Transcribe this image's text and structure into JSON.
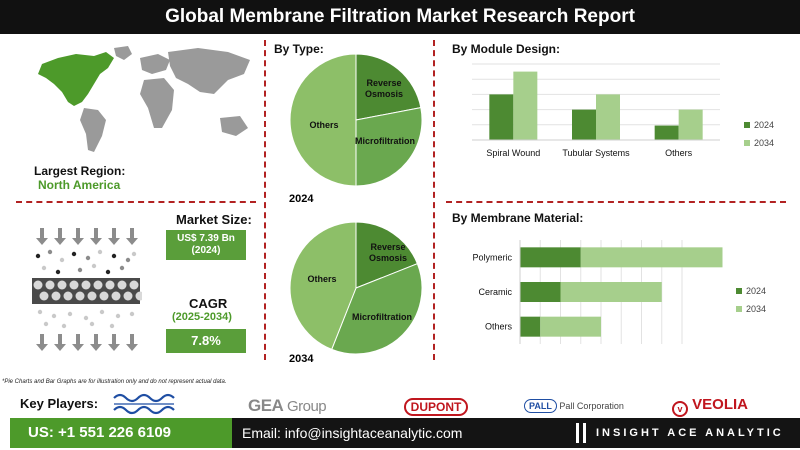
{
  "header": {
    "title": "Global Membrane Filtration Market Research Report"
  },
  "region": {
    "label": "Largest Region:",
    "value": "North America"
  },
  "market": {
    "size_label": "Market Size:",
    "size_value": "US$ 7.39 Bn",
    "size_year": "(2024)",
    "cagr_label": "CAGR",
    "cagr_period": "(2025-2034)",
    "cagr_value": "7.8%"
  },
  "by_type": {
    "label": "By Type:",
    "year_2024": "2024",
    "year_2034": "2034"
  },
  "by_module": {
    "label": "By Module Design:"
  },
  "by_material": {
    "label": "By Membrane Material:"
  },
  "note": "*Pie Charts and Bar Graphs are for illustration only and do not represent actual data.",
  "key_players": {
    "label": "Key Players:",
    "logos": [
      "ALFA LAVAL",
      "GEA Group",
      "DUPONT",
      "Pall Corporation",
      "VEOLIA"
    ],
    "gea_text": "GEA",
    "gea_group": "Group",
    "dupont_text": "DUPONT",
    "pall_badge": "PALL",
    "pall_text": "Pall Corporation",
    "veolia_text": "VEOLIA"
  },
  "footer": {
    "phone": "US: +1 551 226 6109",
    "email": "Email: info@insightaceanalytic.com",
    "brand": "INSIGHT ACE ANALYTIC"
  },
  "colors": {
    "dark_green": "#4d8a32",
    "mid_green": "#6aa84f",
    "light_green": "#a6cf8c",
    "pie_light": "#8dbf68",
    "red": "#c0161e"
  },
  "chart_data": [
    {
      "type": "pie",
      "title": "2024",
      "labels": [
        "Reverse Osmosis",
        "Microfiltration",
        "Others"
      ],
      "values": [
        22,
        28,
        50
      ]
    },
    {
      "type": "pie",
      "title": "2034",
      "labels": [
        "Reverse Osmosis",
        "Microfiltration",
        "Others"
      ],
      "values": [
        19,
        37,
        44
      ]
    },
    {
      "type": "bar",
      "title": "By Module Design:",
      "categories": [
        "Spiral Wound",
        "Tubular Systems",
        "Others"
      ],
      "series": [
        {
          "name": "2024",
          "values": [
            6.0,
            4.0,
            1.9
          ]
        },
        {
          "name": "2034",
          "values": [
            9.0,
            6.0,
            4.0
          ]
        }
      ],
      "ylim": [
        0,
        10
      ],
      "grid": true,
      "legend": "right"
    },
    {
      "type": "bar",
      "orientation": "horizontal",
      "title": "By Membrane Material:",
      "categories": [
        "Polymeric",
        "Ceramic",
        "Others"
      ],
      "series": [
        {
          "name": "2024",
          "values": [
            3.0,
            2.0,
            1.0
          ]
        },
        {
          "name": "2034",
          "values": [
            7.0,
            5.0,
            3.0
          ]
        }
      ],
      "xlim": [
        0,
        8
      ],
      "grid": true,
      "legend": "right"
    }
  ]
}
